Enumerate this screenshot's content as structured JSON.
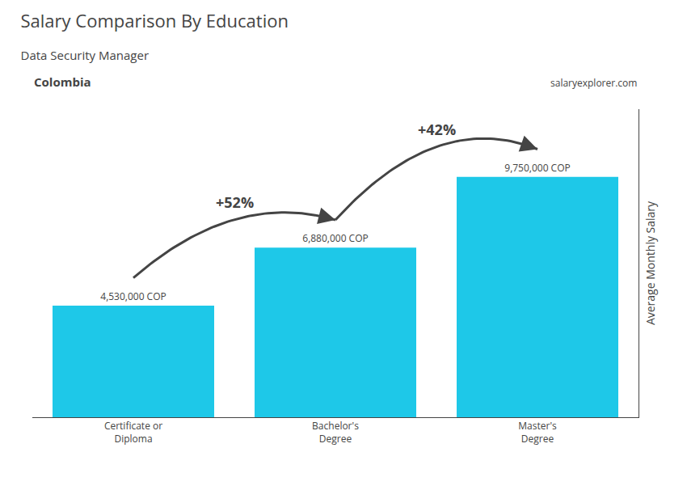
{
  "chart_data": {
    "type": "bar",
    "title": "Salary Comparison By Education",
    "subtitle": "Data Security Manager",
    "annotations": [
      {
        "text": "Colombia"
      },
      {
        "text": "salaryexplorer.com"
      },
      {
        "text": "+52%",
        "from": "Certificate or\nDiploma",
        "to": "Bachelor's\nDegree"
      },
      {
        "text": "+42%",
        "from": "Bachelor's\nDegree",
        "to": "Master's\nDegree"
      }
    ],
    "categories": [
      "Certificate or\nDiploma",
      "Bachelor's\nDegree",
      "Master's\nDegree"
    ],
    "values": [
      4530000,
      6880000,
      9750000
    ],
    "value_labels": [
      "4,530,000 COP",
      "6,880,000 COP",
      "9,750,000 COP"
    ],
    "data_labels": true,
    "color": "#1ec8e8",
    "ylabel": "Average Monthly Salary",
    "ylim": [
      0,
      12500000
    ],
    "yticks": [],
    "tick_labels": "x",
    "grid": false
  }
}
